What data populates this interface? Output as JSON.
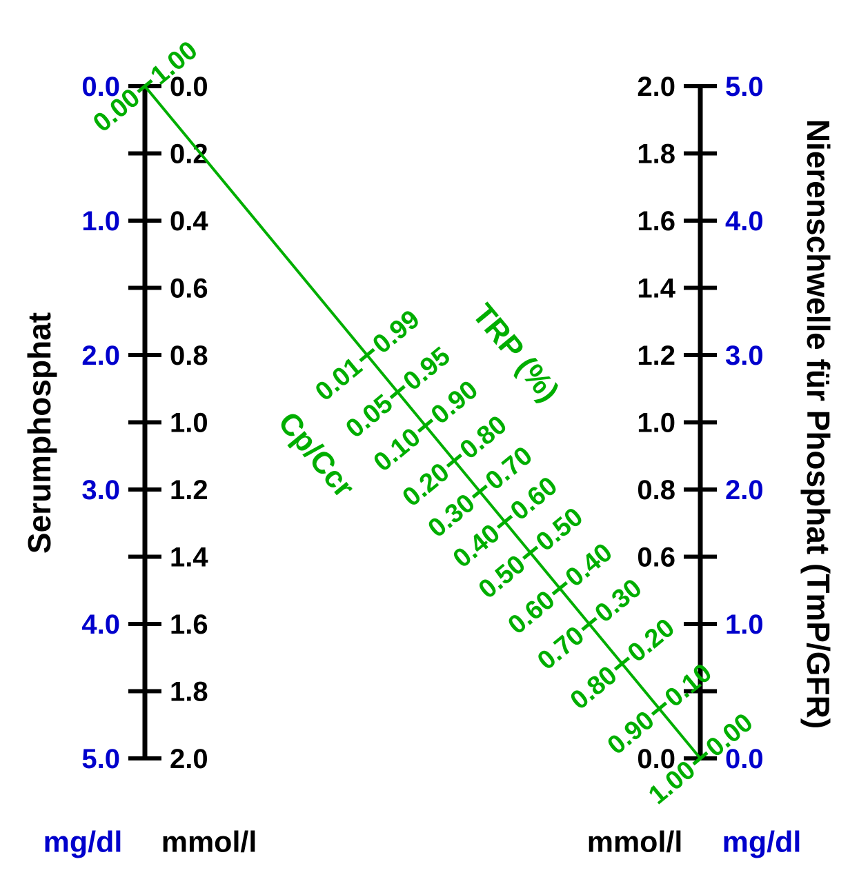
{
  "colors": {
    "blue": "#0000cc",
    "green": "#00ae00",
    "black": "#000000",
    "background": "#ffffff"
  },
  "chart_data": {
    "type": "line",
    "subtype": "nomogram",
    "left_scale": {
      "title": "Serumphosphat",
      "mgdl_unit": "mg/dl",
      "mmoll_unit": "mmol/l",
      "mgdl_labels": [
        "0.0",
        "1.0",
        "2.0",
        "3.0",
        "4.0",
        "5.0"
      ],
      "mgdl_range": [
        0,
        5
      ],
      "mmoll_labels": [
        "0.0",
        "0.2",
        "0.4",
        "0.6",
        "0.8",
        "1.0",
        "1.2",
        "1.4",
        "1.6",
        "1.8",
        "2.0"
      ],
      "mmoll_range": [
        0,
        2
      ],
      "direction": "increasing-downward"
    },
    "right_scale": {
      "title": "Nierenschwelle für Phosphat (TmP/GFR)",
      "mmoll_unit": "mmol/l",
      "mgdl_unit": "mg/dl",
      "mmoll_labels": [
        "2.0",
        "1.8",
        "1.6",
        "1.4",
        "1.2",
        "1.0",
        "0.8",
        "0.6",
        "0.0"
      ],
      "mmoll_range": [
        2,
        0
      ],
      "mgdl_labels": [
        "5.0",
        "4.0",
        "3.0",
        "2.0",
        "1.0",
        "0.0"
      ],
      "mgdl_range": [
        5,
        0
      ],
      "direction": "decreasing-downward"
    },
    "diagonal_scale": {
      "left_title": "Cp/Ccr",
      "right_title": "TRP (%)",
      "ticks": [
        {
          "cp_ccr": "0.00",
          "trp": "1.00",
          "pos": 0.0
        },
        {
          "cp_ccr": "0.01",
          "trp": "0.99",
          "pos": 0.4
        },
        {
          "cp_ccr": "0.05",
          "trp": "0.95",
          "pos": 0.455
        },
        {
          "cp_ccr": "0.10",
          "trp": "0.90",
          "pos": 0.505
        },
        {
          "cp_ccr": "0.20",
          "trp": "0.80",
          "pos": 0.557
        },
        {
          "cp_ccr": "0.30",
          "trp": "0.70",
          "pos": 0.603
        },
        {
          "cp_ccr": "0.40",
          "trp": "0.60",
          "pos": 0.648
        },
        {
          "cp_ccr": "0.50",
          "trp": "0.50",
          "pos": 0.694
        },
        {
          "cp_ccr": "0.60",
          "trp": "0.40",
          "pos": 0.747
        },
        {
          "cp_ccr": "0.70",
          "trp": "0.30",
          "pos": 0.8
        },
        {
          "cp_ccr": "0.80",
          "trp": "0.20",
          "pos": 0.859
        },
        {
          "cp_ccr": "0.90",
          "trp": "0.10",
          "pos": 0.926
        },
        {
          "cp_ccr": "1.00",
          "trp": "0.00",
          "pos": 1.0
        }
      ]
    }
  }
}
